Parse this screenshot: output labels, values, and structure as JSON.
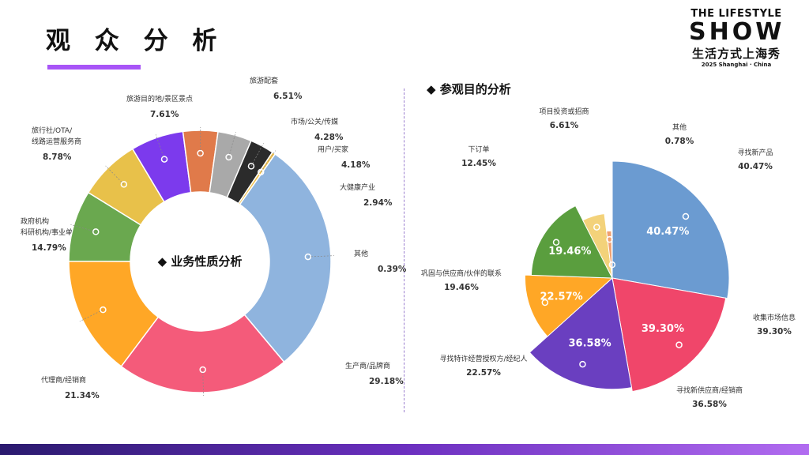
{
  "page": {
    "title": "观 众 分 析",
    "accent": "#a855f7"
  },
  "logo": {
    "line1": "THE LIFESTYLE",
    "line2": "SHOW",
    "line3": "生活方式上海秀",
    "line4": "2025 Shanghai · China"
  },
  "right_section_title": "◆ 参观目的分析",
  "chart_data": [
    {
      "type": "pie",
      "variant": "donut",
      "title": "◆ 业务性质分析",
      "slices": [
        {
          "label": "生产商/品牌商",
          "value": 29.18,
          "pct_text": "29.18%",
          "color": "#8fb4de"
        },
        {
          "label": "代理商/经销商",
          "value": 21.34,
          "pct_text": "21.34%",
          "color": "#f45b7a"
        },
        {
          "label": "政府机构\n科研机构/事业单位",
          "value": 14.79,
          "pct_text": "14.79%",
          "color": "#ffa726"
        },
        {
          "label": "旅行社/OTA/\n线路运营服务商",
          "value": 8.78,
          "pct_text": "8.78%",
          "color": "#6aa84f"
        },
        {
          "label": "旅游目的地/景区景点",
          "value": 7.61,
          "pct_text": "7.61%",
          "color": "#e8c14a"
        },
        {
          "label": "旅游配套",
          "value": 6.51,
          "pct_text": "6.51%",
          "color": "#7c3aed"
        },
        {
          "label": "市场/公关/传媒",
          "value": 4.28,
          "pct_text": "4.28%",
          "color": "#e07a4a"
        },
        {
          "label": "用户/买家",
          "value": 4.18,
          "pct_text": "4.18%",
          "color": "#a9a9a9"
        },
        {
          "label": "大健康产业",
          "value": 2.94,
          "pct_text": "2.94%",
          "color": "#2b2b2b"
        },
        {
          "label": "其他",
          "value": 0.39,
          "pct_text": "0.39%",
          "color": "#f0c04a"
        }
      ]
    },
    {
      "type": "pie",
      "variant": "polar-area",
      "title": "◆ 参观目的分析",
      "slices": [
        {
          "label": "寻找新产品",
          "value": 40.47,
          "pct_text": "40.47%",
          "color": "#6b9bd1"
        },
        {
          "label": "收集市场信息",
          "value": 39.3,
          "pct_text": "39.30%",
          "color": "#f0466a"
        },
        {
          "label": "寻找新供应商/经销商",
          "value": 36.58,
          "pct_text": "36.58%",
          "color": "#6a3fc0"
        },
        {
          "label": "寻找特许经营授权方/经纪人",
          "value": 22.57,
          "pct_text": "22.57%",
          "color": "#ffa726"
        },
        {
          "label": "巩固与供应商/伙伴的联系",
          "value": 19.46,
          "pct_text": "19.46%",
          "color": "#5a9e3e"
        },
        {
          "label": "下订单",
          "value": 12.45,
          "pct_text": "12.45%",
          "color": "#f3d27a"
        },
        {
          "label": "项目投资或招商",
          "value": 6.61,
          "pct_text": "6.61%",
          "color": "#f0a070"
        },
        {
          "label": "其他",
          "value": 0.78,
          "pct_text": "0.78%",
          "color": "#d8b0a0"
        }
      ]
    }
  ]
}
